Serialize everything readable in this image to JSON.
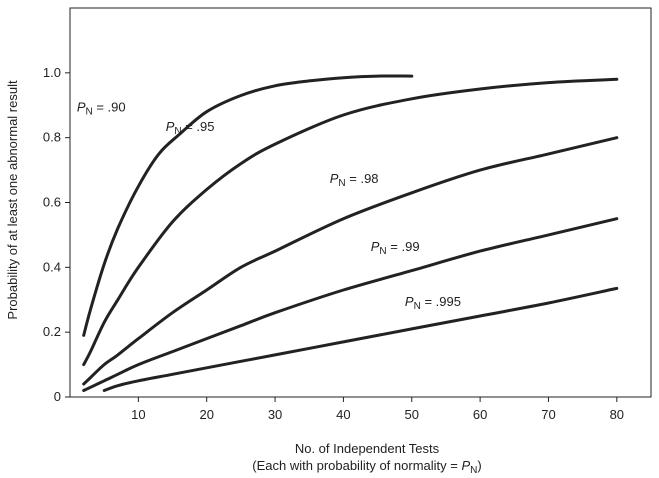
{
  "chart_data": {
    "type": "line",
    "title": "",
    "xlabel_line1": "No. of Independent Tests",
    "xlabel_line2_prefix": "(Each with probability of normality = ",
    "xlabel_line2_var": "P",
    "xlabel_line2_sub": "N",
    "xlabel_line2_suffix": ")",
    "ylabel": "Probability of at least one abnormal result",
    "xlim": [
      0,
      85
    ],
    "ylim": [
      0,
      1.2
    ],
    "x_ticks": [
      10,
      20,
      30,
      40,
      50,
      60,
      70,
      80
    ],
    "y_ticks": [
      0,
      0.2,
      0.4,
      0.6,
      0.8,
      1.0
    ],
    "y_tick_labels": [
      "0",
      "0.2",
      "0.4",
      "0.6",
      "0.8",
      "1.0"
    ],
    "grid": false,
    "series": [
      {
        "name": ".90",
        "x": [
          2,
          3,
          5,
          7,
          10,
          13,
          16,
          20,
          25,
          30,
          35,
          40,
          45,
          50
        ],
        "y": [
          0.19,
          0.27,
          0.41,
          0.52,
          0.65,
          0.75,
          0.81,
          0.88,
          0.93,
          0.96,
          0.975,
          0.985,
          0.99,
          0.99
        ],
        "label_anchor": [
          1,
          0.88
        ]
      },
      {
        "name": ".95",
        "x": [
          2,
          3,
          5,
          7,
          10,
          15,
          20,
          25,
          30,
          40,
          50,
          60,
          70,
          80
        ],
        "y": [
          0.1,
          0.14,
          0.23,
          0.3,
          0.4,
          0.54,
          0.64,
          0.72,
          0.78,
          0.87,
          0.92,
          0.95,
          0.97,
          0.98
        ],
        "label_anchor": [
          14,
          0.82
        ]
      },
      {
        "name": ".98",
        "x": [
          2,
          3,
          5,
          7,
          10,
          15,
          20,
          25,
          30,
          40,
          50,
          60,
          70,
          80
        ],
        "y": [
          0.04,
          0.06,
          0.1,
          0.13,
          0.18,
          0.26,
          0.33,
          0.4,
          0.45,
          0.55,
          0.63,
          0.7,
          0.75,
          0.8
        ],
        "label_anchor": [
          38,
          0.66
        ]
      },
      {
        "name": ".99",
        "x": [
          2,
          3,
          5,
          7,
          10,
          15,
          20,
          25,
          30,
          40,
          50,
          60,
          70,
          80
        ],
        "y": [
          0.02,
          0.03,
          0.05,
          0.07,
          0.1,
          0.14,
          0.18,
          0.22,
          0.26,
          0.33,
          0.39,
          0.45,
          0.5,
          0.55
        ],
        "label_anchor": [
          44,
          0.45
        ]
      },
      {
        "name": ".995",
        "x": [
          5,
          7,
          10,
          15,
          20,
          25,
          30,
          40,
          50,
          60,
          70,
          80
        ],
        "y": [
          0.02,
          0.035,
          0.05,
          0.07,
          0.09,
          0.11,
          0.13,
          0.17,
          0.21,
          0.25,
          0.29,
          0.335
        ],
        "label_anchor": [
          49,
          0.28
        ]
      }
    ],
    "curve_label_var": "P",
    "curve_label_sub": "N",
    "curve_label_eq": " = "
  }
}
